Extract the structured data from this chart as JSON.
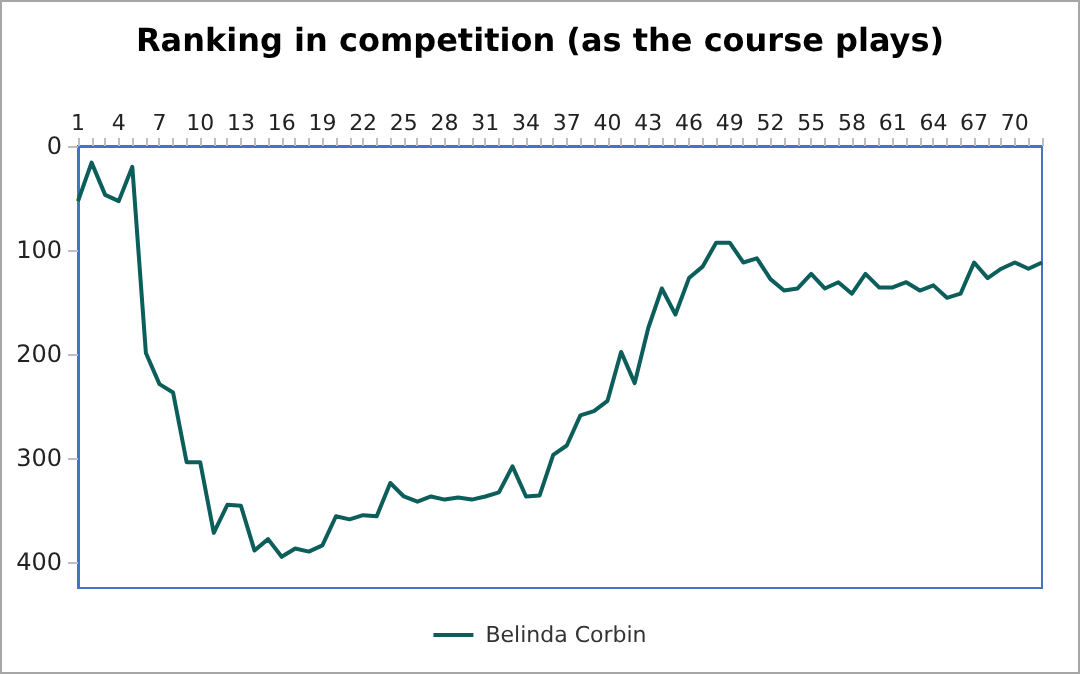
{
  "chart_data": {
    "type": "line",
    "title": "Ranking in competition (as the course plays)",
    "categories": [
      "1",
      null,
      null,
      "4",
      null,
      null,
      "7",
      null,
      null,
      "10",
      null,
      null,
      "13",
      null,
      null,
      "16",
      null,
      null,
      "19",
      null,
      null,
      "22",
      null,
      null,
      "25",
      null,
      null,
      "28",
      null,
      null,
      "31",
      null,
      null,
      "34",
      null,
      null,
      "37",
      null,
      null,
      "40",
      null,
      null,
      "43",
      null,
      null,
      "46",
      null,
      null,
      "49",
      null,
      null,
      "52",
      null,
      null,
      "55",
      null,
      null,
      "58",
      null,
      null,
      "61",
      null,
      null,
      "64",
      null,
      null,
      "67",
      null,
      null,
      "70",
      null,
      null
    ],
    "series": [
      {
        "name": "Belinda Corbin",
        "color": "#0b5e5a",
        "values": [
          53,
          16,
          47,
          53,
          20,
          199,
          229,
          237,
          304,
          304,
          372,
          345,
          346,
          389,
          378,
          395,
          387,
          390,
          384,
          356,
          359,
          355,
          356,
          324,
          337,
          342,
          337,
          340,
          338,
          340,
          337,
          333,
          308,
          337,
          336,
          297,
          288,
          259,
          255,
          245,
          198,
          228,
          175,
          137,
          162,
          127,
          116,
          93,
          93,
          112,
          108,
          128,
          139,
          137,
          123,
          137,
          131,
          142,
          123,
          136,
          136,
          131,
          139,
          134,
          146,
          142,
          112,
          127,
          118,
          112,
          118,
          112
        ]
      }
    ],
    "ylim": [
      425,
      0
    ],
    "yticks": [
      0,
      100,
      200,
      300,
      400
    ],
    "grid": false,
    "legend": "bottom",
    "marker": "none",
    "line_style": "solid"
  }
}
